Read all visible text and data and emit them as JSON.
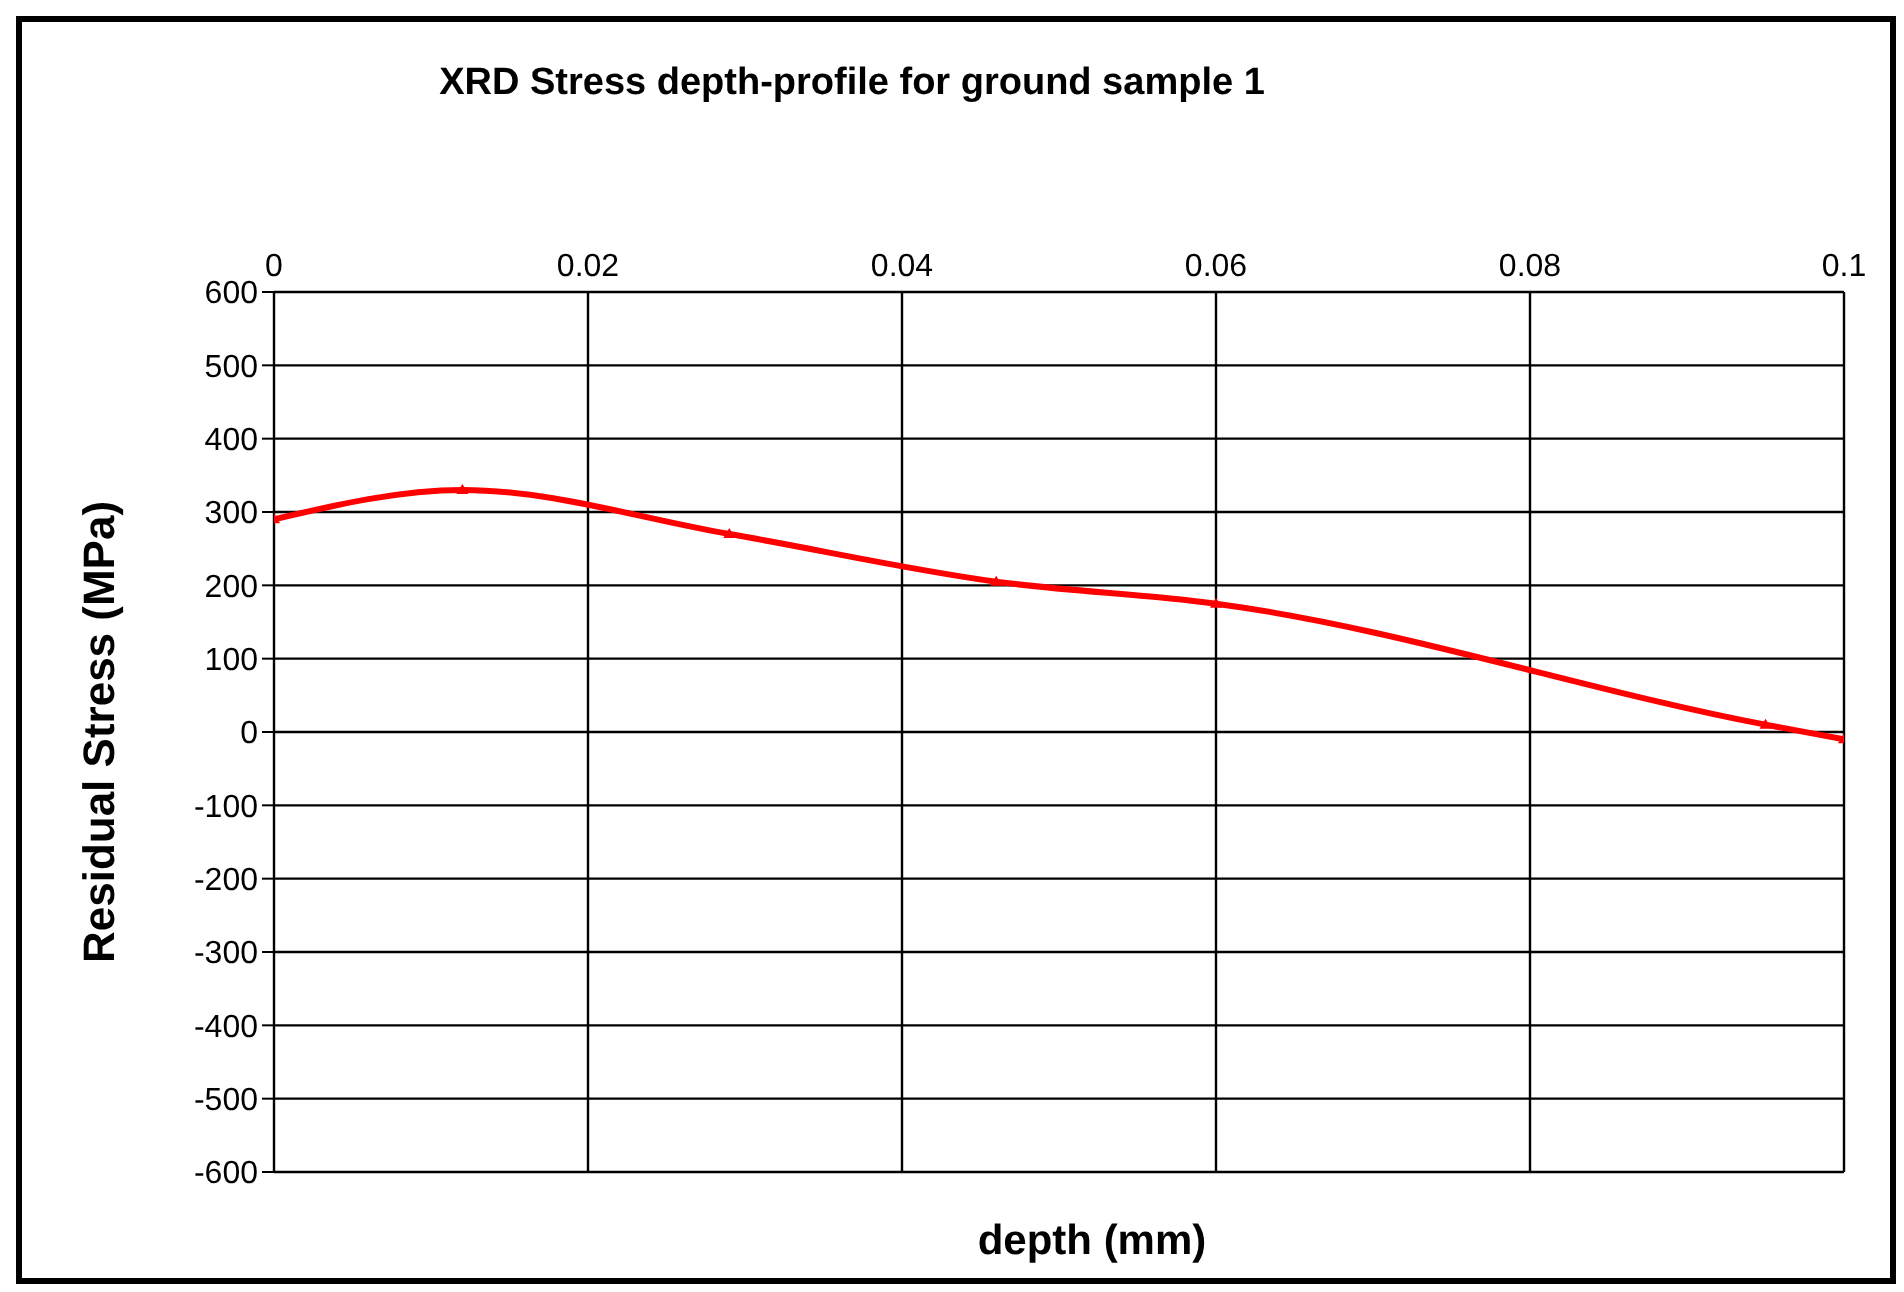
{
  "chart_data": {
    "type": "line",
    "title": "XRD Stress depth-profile for ground sample 1",
    "xlabel": "depth (mm)",
    "ylabel": "Residual Stress (MPa)",
    "x": [
      0,
      0.012,
      0.029,
      0.046,
      0.06,
      0.095,
      0.1
    ],
    "series": [
      {
        "color": "#ff0000",
        "values": [
          290,
          330,
          270,
          205,
          175,
          10,
          -10
        ]
      }
    ],
    "xlim": [
      0,
      0.1
    ],
    "xticks": [
      0,
      0.02,
      0.04,
      0.06,
      0.08,
      0.1
    ],
    "ylim": [
      -600,
      600
    ],
    "yticks": [
      -600,
      -500,
      -400,
      -300,
      -200,
      -100,
      0,
      100,
      200,
      300,
      400,
      500,
      600
    ],
    "grid": true,
    "legend": false,
    "marker": "triangle",
    "line_style": "solid"
  }
}
